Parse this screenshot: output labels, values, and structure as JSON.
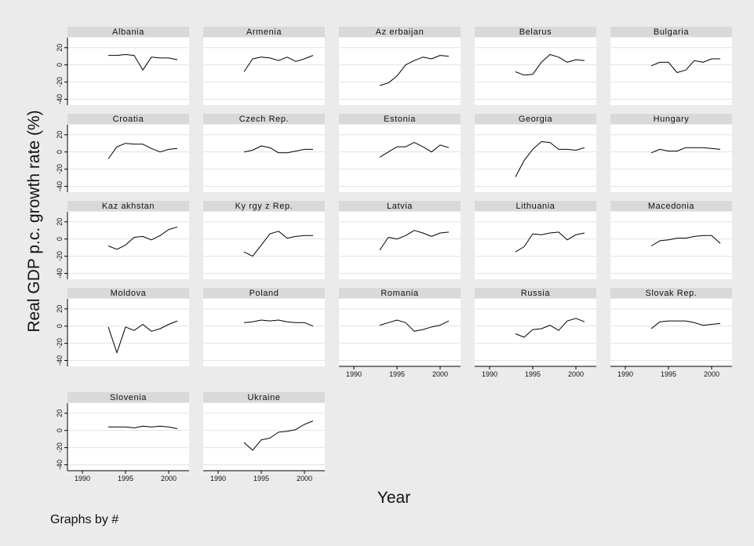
{
  "chart_data": {
    "type": "line",
    "ylabel": "Real GDP p.c. growth rate (%)",
    "xlabel": "Year",
    "note": "Graphs by #",
    "x_range": [
      1989,
      2002
    ],
    "y_range": [
      -45,
      28
    ],
    "x_ticks": [
      1990,
      1995,
      2000
    ],
    "y_ticks": [
      20,
      0,
      -20,
      -40
    ],
    "x_tick_labels": [
      "1990",
      "1995",
      "2000"
    ],
    "y_tick_labels": [
      "20",
      "0",
      "-20",
      "-40"
    ],
    "grid": "horizontal",
    "colors": {
      "background": "#ebebeb",
      "plot_area": "#ffffff",
      "title_strip": "#d9d9d9",
      "line": "#000000",
      "grid": "#e3e3e3"
    },
    "panels": [
      {
        "name": "Albania",
        "x": [
          1993,
          1994,
          1995,
          1996,
          1997,
          1998,
          1999,
          2000,
          2001
        ],
        "y": [
          11,
          11,
          12,
          11,
          -6,
          9,
          8,
          8,
          6
        ]
      },
      {
        "name": "Armenia",
        "x": [
          1993,
          1994,
          1995,
          1996,
          1997,
          1998,
          1999,
          2000,
          2001
        ],
        "y": [
          -8,
          7,
          9,
          8,
          5,
          9,
          4,
          7,
          11
        ]
      },
      {
        "name": "Az erbaijan",
        "x": [
          1993,
          1994,
          1995,
          1996,
          1997,
          1998,
          1999,
          2000,
          2001
        ],
        "y": [
          -24,
          -21,
          -13,
          0,
          5,
          9,
          7,
          11,
          10
        ]
      },
      {
        "name": "Belarus",
        "x": [
          1993,
          1994,
          1995,
          1996,
          1997,
          1998,
          1999,
          2000,
          2001
        ],
        "y": [
          -8,
          -12,
          -11,
          3,
          12,
          9,
          3,
          6,
          5
        ]
      },
      {
        "name": "Bulgaria",
        "x": [
          1993,
          1994,
          1995,
          1996,
          1997,
          1998,
          1999,
          2000,
          2001
        ],
        "y": [
          -1,
          3,
          3,
          -9,
          -6,
          5,
          3,
          7,
          7
        ]
      },
      {
        "name": "Croatia",
        "x": [
          1993,
          1994,
          1995,
          1996,
          1997,
          1998,
          1999,
          2000,
          2001
        ],
        "y": [
          -8,
          6,
          10,
          9,
          9,
          4,
          0,
          3,
          4
        ]
      },
      {
        "name": "Czech Rep.",
        "x": [
          1993,
          1994,
          1995,
          1996,
          1997,
          1998,
          1999,
          2000,
          2001
        ],
        "y": [
          0,
          2,
          7,
          5,
          -1,
          -1,
          1,
          3,
          3
        ]
      },
      {
        "name": "Estonia",
        "x": [
          1993,
          1994,
          1995,
          1996,
          1997,
          1998,
          1999,
          2000,
          2001
        ],
        "y": [
          -6,
          0,
          6,
          6,
          11,
          6,
          0,
          8,
          5
        ]
      },
      {
        "name": "Georgia",
        "x": [
          1993,
          1994,
          1995,
          1996,
          1997,
          1998,
          1999,
          2000,
          2001
        ],
        "y": [
          -29,
          -10,
          3,
          12,
          11,
          3,
          3,
          2,
          5
        ]
      },
      {
        "name": "Hungary",
        "x": [
          1993,
          1994,
          1995,
          1996,
          1997,
          1998,
          1999,
          2000,
          2001
        ],
        "y": [
          -1,
          3,
          1,
          1,
          5,
          5,
          5,
          4,
          3
        ]
      },
      {
        "name": "Kaz akhstan",
        "x": [
          1993,
          1994,
          1995,
          1996,
          1997,
          1998,
          1999,
          2000,
          2001
        ],
        "y": [
          -8,
          -12,
          -7,
          2,
          3,
          -1,
          4,
          11,
          14
        ]
      },
      {
        "name": "Ky rgy z Rep.",
        "x": [
          1993,
          1994,
          1995,
          1996,
          1997,
          1998,
          1999,
          2000,
          2001
        ],
        "y": [
          -15,
          -20,
          -7,
          6,
          9,
          1,
          3,
          4,
          4
        ]
      },
      {
        "name": "Latvia",
        "x": [
          1993,
          1994,
          1995,
          1996,
          1997,
          1998,
          1999,
          2000,
          2001
        ],
        "y": [
          -13,
          2,
          0,
          4,
          10,
          7,
          3,
          7,
          8
        ]
      },
      {
        "name": "Lithuania",
        "x": [
          1993,
          1994,
          1995,
          1996,
          1997,
          1998,
          1999,
          2000,
          2001
        ],
        "y": [
          -15,
          -9,
          6,
          5,
          7,
          8,
          -1,
          5,
          7
        ]
      },
      {
        "name": "Macedonia",
        "x": [
          1993,
          1994,
          1995,
          1996,
          1997,
          1998,
          1999,
          2000,
          2001
        ],
        "y": [
          -8,
          -2,
          -1,
          1,
          1,
          3,
          4,
          4,
          -5
        ]
      },
      {
        "name": "Moldova",
        "x": [
          1993,
          1994,
          1995,
          1996,
          1997,
          1998,
          1999,
          2000,
          2001
        ],
        "y": [
          -1,
          -31,
          -1,
          -5,
          2,
          -6,
          -3,
          2,
          6
        ]
      },
      {
        "name": "Poland",
        "x": [
          1993,
          1994,
          1995,
          1996,
          1997,
          1998,
          1999,
          2000,
          2001
        ],
        "y": [
          4,
          5,
          7,
          6,
          7,
          5,
          4,
          4,
          0
        ]
      },
      {
        "name": "Romania",
        "x": [
          1993,
          1994,
          1995,
          1996,
          1997,
          1998,
          1999,
          2000,
          2001
        ],
        "y": [
          1,
          4,
          7,
          4,
          -6,
          -4,
          -1,
          1,
          6
        ]
      },
      {
        "name": "Russia",
        "x": [
          1993,
          1994,
          1995,
          1996,
          1997,
          1998,
          1999,
          2000,
          2001
        ],
        "y": [
          -9,
          -13,
          -4,
          -3,
          1,
          -5,
          6,
          9,
          5
        ]
      },
      {
        "name": "Slovak Rep.",
        "x": [
          1993,
          1994,
          1995,
          1996,
          1997,
          1998,
          1999,
          2000,
          2001
        ],
        "y": [
          -3,
          5,
          6,
          6,
          6,
          4,
          1,
          2,
          3
        ]
      },
      {
        "name": "Slovenia",
        "x": [
          1993,
          1994,
          1995,
          1996,
          1997,
          1998,
          1999,
          2000,
          2001
        ],
        "y": [
          4,
          4,
          4,
          3,
          5,
          4,
          5,
          4,
          2
        ]
      },
      {
        "name": "Ukraine",
        "x": [
          1993,
          1994,
          1995,
          1996,
          1997,
          1998,
          1999,
          2000,
          2001
        ],
        "y": [
          -14,
          -23,
          -11,
          -9,
          -2,
          -1,
          1,
          7,
          11
        ]
      }
    ]
  }
}
